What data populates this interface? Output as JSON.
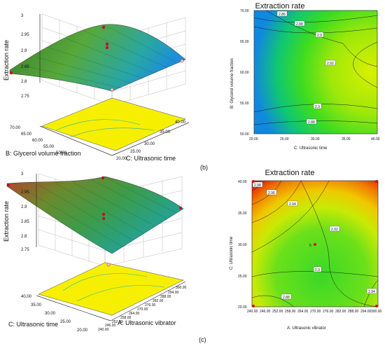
{
  "figure": {
    "panel_b_label": "(b)",
    "panel_c_label": "(c)"
  },
  "chart_data": [
    {
      "id": "b3d",
      "type": "surface",
      "zlabel": "Extraction rate",
      "xlabel": "C: Ultrasonic time",
      "ylabel": "B: Glycerol volume fraction",
      "z_ticks": [
        "2.75",
        "2.8",
        "2.85",
        "2.9",
        "2.95",
        "3"
      ],
      "x_ticks": [
        "20.00",
        "25.00",
        "30.00",
        "35.00",
        "40.00"
      ],
      "y_ticks": [
        "50.00",
        "55.00",
        "60.00",
        "65.00",
        "70.00"
      ],
      "zlim": [
        2.75,
        3.0
      ],
      "xlim": [
        20,
        40
      ],
      "ylim": [
        50,
        70
      ]
    },
    {
      "id": "bcontour",
      "type": "contour",
      "title": "Extraction rate",
      "xlabel": "C: Ultrasonic time",
      "ylabel": "B: Glycerol volume fraction",
      "x_ticks": [
        "20.00",
        "25.00",
        "30.00",
        "35.00",
        "40.00"
      ],
      "y_ticks": [
        "50.00",
        "55.00",
        "60.00",
        "65.00",
        "70.00"
      ],
      "contour_labels": [
        "2.86",
        "2.88",
        "2.9",
        "2.92",
        "2.9",
        "2.88"
      ],
      "xlim": [
        20,
        40
      ],
      "ylim": [
        50,
        70
      ]
    },
    {
      "id": "c3d",
      "type": "surface",
      "zlabel": "Extraction rate",
      "xlabel": "A: Ultrasonic vibrator",
      "ylabel": "C: Ultrasonic time",
      "z_ticks": [
        "2.75",
        "2.8",
        "2.85",
        "2.9",
        "2.95",
        "3"
      ],
      "x_ticks": [
        "240.00",
        "246.00",
        "252.00",
        "258.00",
        "264.00",
        "270.00",
        "276.00",
        "282.00",
        "288.00",
        "294.00",
        "300.00"
      ],
      "y_ticks": [
        "20.00",
        "25.00",
        "30.00",
        "35.00",
        "40.00"
      ],
      "zlim": [
        2.75,
        3.0
      ],
      "xlim": [
        240,
        300
      ],
      "ylim": [
        20,
        40
      ]
    },
    {
      "id": "ccontour",
      "type": "contour",
      "title": "Extraction rate",
      "xlabel": "A: Ultrasonic vibrator",
      "ylabel": "C: Ultrasonic time",
      "x_ticks": [
        "240.00",
        "246.00",
        "252.00",
        "258.00",
        "264.00",
        "270.00",
        "276.00",
        "282.00",
        "288.00",
        "294.00",
        "300.00"
      ],
      "y_ticks": [
        "20.00",
        "25.00",
        "30.00",
        "35.00",
        "40.00"
      ],
      "contour_labels": [
        "2.98",
        "2.96",
        "2.94",
        "2.92",
        "2.9",
        "2.88",
        "2.94"
      ],
      "center_label": "5",
      "xlim": [
        240,
        300
      ],
      "ylim": [
        20,
        40
      ]
    }
  ]
}
